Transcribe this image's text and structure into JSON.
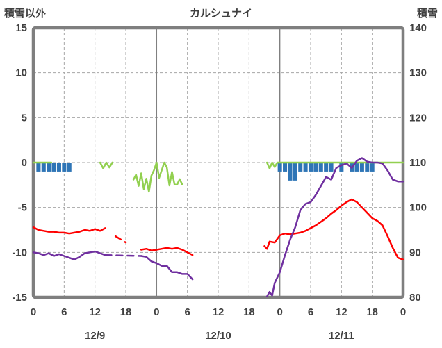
{
  "header": {
    "left_axis_label": "積雪以外",
    "title": "カルシュナイ",
    "right_axis_label": "積雪"
  },
  "style": {
    "grid_color": "#a6a6a6",
    "day_line_color": "#808080",
    "border_color": "#7f7f7f",
    "text_color": "#404040",
    "background": "#ffffff"
  },
  "chart_data": {
    "type": "line",
    "title": "カルシュナイ",
    "grid": true,
    "legend": "none",
    "x_axis": {
      "unit": "hour",
      "range": [
        0,
        72
      ],
      "tick_interval": 6,
      "tick_labels": [
        "0",
        "6",
        "12",
        "18",
        "0",
        "6",
        "12",
        "18",
        "0",
        "6",
        "12",
        "18",
        "0"
      ],
      "day_labels": [
        "12/9",
        "12/10",
        "12/11"
      ]
    },
    "left_axis": {
      "label": "積雪以外",
      "min": -15,
      "max": 15,
      "ticks": [
        15,
        10,
        5,
        0,
        -5,
        -10,
        -15
      ]
    },
    "right_axis": {
      "label": "積雪",
      "min": 80,
      "max": 140,
      "ticks": [
        140,
        130,
        120,
        110,
        100,
        90,
        80
      ]
    },
    "series": [
      {
        "name": "green-line",
        "axis": "right",
        "color": "#92d050",
        "segments": [
          {
            "dashed": false,
            "points": [
              [
                0,
                110
              ],
              [
                3.5,
                110
              ]
            ]
          },
          {
            "dashed": false,
            "points": [
              [
                13,
                110
              ],
              [
                13.6,
                108.7
              ],
              [
                14.2,
                110
              ],
              [
                14.8,
                108.9
              ],
              [
                15.4,
                110
              ]
            ]
          },
          {
            "dashed": false,
            "points": [
              [
                19.5,
                106.2
              ],
              [
                20,
                107.3
              ],
              [
                20.5,
                104.8
              ],
              [
                21,
                107.6
              ],
              [
                21.5,
                104.1
              ],
              [
                22,
                106.4
              ],
              [
                22.5,
                103.5
              ],
              [
                23,
                107.1
              ],
              [
                23.5,
                108.3
              ],
              [
                24,
                110
              ],
              [
                24.5,
                106.6
              ],
              [
                25,
                108.3
              ],
              [
                25.5,
                110
              ],
              [
                26,
                108.9
              ],
              [
                26.5,
                104.9
              ],
              [
                27,
                107.9
              ],
              [
                27.5,
                105.1
              ],
              [
                28,
                105.1
              ],
              [
                28.5,
                106.3
              ],
              [
                29,
                105.1
              ]
            ]
          },
          {
            "dashed": false,
            "points": [
              [
                45.5,
                110
              ],
              [
                46,
                108.7
              ],
              [
                46.5,
                110
              ],
              [
                47,
                109
              ],
              [
                47.5,
                110
              ],
              [
                72,
                110
              ]
            ]
          }
        ]
      },
      {
        "name": "red-line",
        "axis": "left",
        "color": "#ff0000",
        "segments": [
          {
            "dashed": false,
            "points": [
              [
                0,
                -7.2
              ],
              [
                1,
                -7.5
              ],
              [
                2,
                -7.6
              ],
              [
                3,
                -7.7
              ],
              [
                4,
                -7.7
              ],
              [
                5,
                -7.8
              ],
              [
                6,
                -7.8
              ],
              [
                7,
                -7.9
              ],
              [
                8,
                -7.8
              ],
              [
                9,
                -7.7
              ],
              [
                10,
                -7.5
              ],
              [
                11,
                -7.6
              ],
              [
                12,
                -7.4
              ],
              [
                13,
                -7.6
              ],
              [
                14,
                -7.3
              ]
            ]
          },
          {
            "dashed": true,
            "points": [
              [
                16,
                -8.2
              ],
              [
                18,
                -8.9
              ]
            ]
          },
          {
            "dashed": false,
            "points": [
              [
                21,
                -9.7
              ],
              [
                22,
                -9.6
              ],
              [
                23,
                -9.8
              ],
              [
                24,
                -9.7
              ],
              [
                25,
                -9.6
              ],
              [
                26,
                -9.5
              ],
              [
                27,
                -9.6
              ],
              [
                28,
                -9.5
              ],
              [
                29,
                -9.7
              ],
              [
                30,
                -10.0
              ],
              [
                31,
                -10.3
              ]
            ]
          },
          {
            "dashed": false,
            "points": [
              [
                45,
                -9.3
              ],
              [
                45.5,
                -9.6
              ],
              [
                46,
                -8.8
              ],
              [
                47,
                -8.9
              ],
              [
                48,
                -8.1
              ],
              [
                49,
                -7.9
              ],
              [
                50,
                -8.0
              ],
              [
                51,
                -7.9
              ],
              [
                52,
                -7.8
              ],
              [
                53,
                -7.6
              ],
              [
                54,
                -7.3
              ],
              [
                55,
                -7.0
              ],
              [
                56,
                -6.6
              ],
              [
                57,
                -6.2
              ],
              [
                58,
                -5.7
              ],
              [
                59,
                -5.3
              ],
              [
                60,
                -4.8
              ],
              [
                61,
                -4.4
              ],
              [
                62,
                -4.1
              ],
              [
                63,
                -4.4
              ],
              [
                64,
                -5.0
              ],
              [
                65,
                -5.6
              ],
              [
                66,
                -6.2
              ],
              [
                67,
                -6.5
              ],
              [
                68,
                -7.0
              ],
              [
                69,
                -8.2
              ],
              [
                70,
                -9.5
              ],
              [
                71,
                -10.6
              ],
              [
                72,
                -10.8
              ]
            ]
          }
        ]
      },
      {
        "name": "purple-line",
        "axis": "left",
        "color": "#7030a0",
        "segments": [
          {
            "dashed": false,
            "points": [
              [
                0,
                -10.0
              ],
              [
                1,
                -10.1
              ],
              [
                2,
                -10.3
              ],
              [
                3,
                -10.1
              ],
              [
                4,
                -10.4
              ],
              [
                5,
                -10.2
              ],
              [
                6,
                -10.4
              ],
              [
                7,
                -10.6
              ],
              [
                8,
                -10.8
              ],
              [
                9,
                -10.5
              ],
              [
                10,
                -10.1
              ],
              [
                11,
                -10.0
              ],
              [
                12,
                -9.9
              ],
              [
                13,
                -10.1
              ],
              [
                14,
                -10.3
              ]
            ]
          },
          {
            "dashed": true,
            "points": [
              [
                14,
                -10.3
              ],
              [
                21,
                -10.4
              ]
            ]
          },
          {
            "dashed": false,
            "points": [
              [
                21,
                -10.4
              ],
              [
                22,
                -10.5
              ],
              [
                23,
                -11.0
              ],
              [
                24,
                -11.2
              ],
              [
                25,
                -11.5
              ],
              [
                26,
                -11.5
              ],
              [
                27,
                -12.2
              ],
              [
                28,
                -12.2
              ],
              [
                29,
                -12.4
              ],
              [
                30,
                -12.4
              ],
              [
                31,
                -13.0
              ]
            ]
          },
          {
            "dashed": false,
            "points": [
              [
                45.5,
                -14.9
              ],
              [
                46,
                -14.4
              ],
              [
                46.5,
                -14.8
              ],
              [
                47,
                -13.4
              ],
              [
                48,
                -12.2
              ],
              [
                49,
                -10.3
              ],
              [
                50,
                -8.6
              ],
              [
                51,
                -7.2
              ],
              [
                52,
                -5.3
              ],
              [
                53,
                -4.6
              ],
              [
                54,
                -4.4
              ],
              [
                55,
                -3.6
              ],
              [
                56,
                -2.6
              ],
              [
                57,
                -1.6
              ],
              [
                58,
                -1.9
              ],
              [
                59,
                -0.6
              ],
              [
                60,
                -0.3
              ],
              [
                61,
                -0.1
              ],
              [
                62,
                -0.6
              ],
              [
                63,
                0.2
              ],
              [
                64,
                0.5
              ],
              [
                65,
                0.1
              ],
              [
                66,
                0.0
              ],
              [
                67,
                0.0
              ],
              [
                68,
                -0.1
              ],
              [
                69,
                -0.9
              ],
              [
                70,
                -1.9
              ],
              [
                71,
                -2.1
              ],
              [
                72,
                -2.1
              ]
            ]
          }
        ]
      }
    ],
    "bars": {
      "name": "blue-bars",
      "axis": "left",
      "color": "#2e75b6",
      "baseline": 0,
      "direction": "down",
      "values": [
        [
          1,
          1
        ],
        [
          2,
          1
        ],
        [
          3,
          1
        ],
        [
          4,
          1
        ],
        [
          5,
          1
        ],
        [
          6,
          1
        ],
        [
          7,
          1
        ],
        [
          48,
          1
        ],
        [
          49,
          1
        ],
        [
          50,
          2
        ],
        [
          51,
          2
        ],
        [
          52,
          1
        ],
        [
          53,
          1
        ],
        [
          54,
          1
        ],
        [
          55,
          1
        ],
        [
          56,
          1
        ],
        [
          57,
          1
        ],
        [
          58,
          1
        ],
        [
          60,
          1
        ],
        [
          62,
          1
        ],
        [
          63,
          1
        ],
        [
          64,
          1
        ],
        [
          65,
          1
        ],
        [
          66,
          1
        ]
      ]
    }
  }
}
